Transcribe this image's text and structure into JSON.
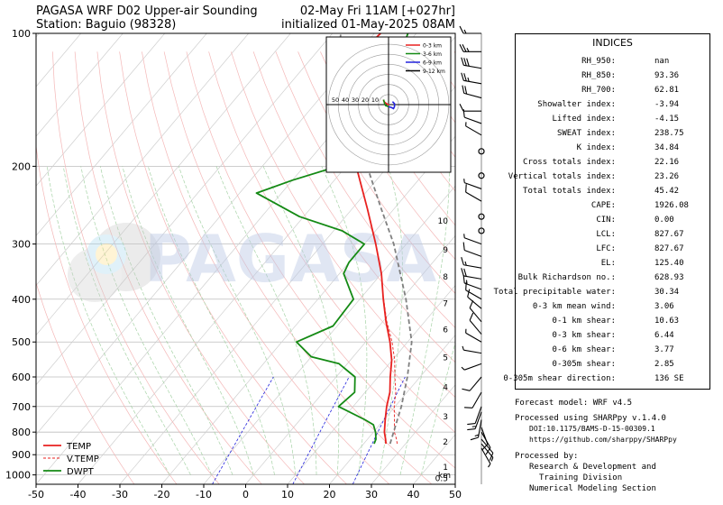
{
  "header": {
    "title_left_line1": "PAGASA WRF D02 Upper-air Sounding",
    "title_left_line2": "Station: Baguio (98328)",
    "title_right_line1": "02-May Fri 11AM [+027hr]",
    "title_right_line2": "initialized 01-May-2025 08AM"
  },
  "watermark": "PAGASA",
  "chart_data": {
    "type": "skew-t",
    "x_ticks": [
      -50,
      -40,
      -30,
      -20,
      -10,
      0,
      10,
      20,
      30,
      40,
      50
    ],
    "y_ticks": [
      100,
      200,
      300,
      400,
      500,
      600,
      700,
      800,
      900,
      1000
    ],
    "xlim": [
      -50,
      50
    ],
    "ylim": [
      1050,
      100
    ],
    "y_scale": "log",
    "height_labels": [
      "10",
      "9",
      "8",
      "7",
      "6",
      "5",
      "4",
      "3",
      "2",
      "1",
      "0.5"
    ],
    "height_labels_km": [
      10,
      9,
      8,
      7,
      6,
      5,
      4,
      3,
      2,
      1,
      0.5
    ],
    "height_unit": "km",
    "legend": [
      "TEMP",
      "V.TEMP",
      "DWPT"
    ],
    "legend_position": "lower-left",
    "colors": {
      "temp": "#e8211f",
      "vtemp": "#e8211f",
      "dwpt": "#148a14",
      "parcel": "#808080",
      "dry_adiabat": "#f4b7b7",
      "moist_adiabat": "#a7d3a7",
      "mixing_ratio": "#2222dd"
    },
    "series": [
      {
        "name": "TEMP",
        "points": [
          [
            850,
            25.3
          ],
          [
            830,
            24.3
          ],
          [
            800,
            22.6
          ],
          [
            750,
            20.3
          ],
          [
            700,
            18.0
          ],
          [
            650,
            15.9
          ],
          [
            600,
            12.9
          ],
          [
            550,
            9.9
          ],
          [
            500,
            5.8
          ],
          [
            450,
            0.8
          ],
          [
            400,
            -4.4
          ],
          [
            350,
            -10.0
          ],
          [
            300,
            -17.3
          ],
          [
            250,
            -26.3
          ],
          [
            200,
            -37.6
          ],
          [
            175,
            -44.5
          ],
          [
            150,
            -51.8
          ],
          [
            130,
            -57.5
          ],
          [
            115,
            -60.0
          ],
          [
            100,
            -58.5
          ]
        ]
      },
      {
        "name": "V.TEMP",
        "points": [
          [
            850,
            28.0
          ],
          [
            830,
            26.9
          ],
          [
            800,
            25.0
          ],
          [
            750,
            22.5
          ],
          [
            700,
            19.8
          ],
          [
            650,
            17.3
          ],
          [
            600,
            14.0
          ],
          [
            550,
            10.6
          ],
          [
            500,
            6.3
          ],
          [
            450,
            1.0
          ],
          [
            400,
            -4.3
          ]
        ]
      },
      {
        "name": "DWPT",
        "points": [
          [
            850,
            22.5
          ],
          [
            830,
            22.0
          ],
          [
            800,
            20.5
          ],
          [
            770,
            18.5
          ],
          [
            750,
            15.5
          ],
          [
            700,
            6.5
          ],
          [
            650,
            7.5
          ],
          [
            600,
            4.5
          ],
          [
            560,
            -2.0
          ],
          [
            540,
            -10.0
          ],
          [
            500,
            -16.5
          ],
          [
            460,
            -11.0
          ],
          [
            400,
            -11.5
          ],
          [
            350,
            -19.0
          ],
          [
            330,
            -20.0
          ],
          [
            300,
            -20.0
          ],
          [
            280,
            -28.0
          ],
          [
            260,
            -41.0
          ],
          [
            230,
            -56.0
          ],
          [
            215,
            -50.0
          ],
          [
            200,
            -42.0
          ],
          [
            185,
            -40.0
          ],
          [
            165,
            -43.5
          ],
          [
            150,
            -42.0
          ],
          [
            130,
            -43.5
          ],
          [
            115,
            -49.0
          ],
          [
            100,
            -52.0
          ]
        ]
      },
      {
        "name": "parcel",
        "points": [
          [
            850,
            26.3
          ],
          [
            700,
            21.5
          ],
          [
            600,
            17.0
          ],
          [
            500,
            11.0
          ],
          [
            400,
            1.0
          ],
          [
            300,
            -13.0
          ],
          [
            250,
            -23.0
          ],
          [
            200,
            -35.0
          ],
          [
            150,
            -51.0
          ],
          [
            120,
            -62.0
          ],
          [
            100,
            -68.0
          ]
        ]
      }
    ],
    "wind_barbs": [
      [
        100,
        270,
        15
      ],
      [
        110,
        270,
        25
      ],
      [
        120,
        280,
        30
      ],
      [
        130,
        280,
        25
      ],
      [
        140,
        285,
        20
      ],
      [
        150,
        270,
        10
      ],
      [
        160,
        290,
        10
      ],
      [
        170,
        300,
        5
      ],
      [
        185,
        0,
        0
      ],
      [
        210,
        0,
        0
      ],
      [
        225,
        290,
        5
      ],
      [
        240,
        300,
        10
      ],
      [
        260,
        0,
        0
      ],
      [
        280,
        0,
        0
      ],
      [
        300,
        290,
        5
      ],
      [
        320,
        290,
        10
      ],
      [
        340,
        280,
        15
      ],
      [
        360,
        280,
        20
      ],
      [
        380,
        290,
        15
      ],
      [
        400,
        300,
        10
      ],
      [
        420,
        310,
        10
      ],
      [
        450,
        320,
        10
      ],
      [
        480,
        320,
        10
      ],
      [
        500,
        300,
        5
      ],
      [
        530,
        280,
        5
      ],
      [
        560,
        250,
        5
      ],
      [
        600,
        220,
        10
      ],
      [
        650,
        210,
        10
      ],
      [
        700,
        200,
        10
      ],
      [
        720,
        200,
        15
      ],
      [
        750,
        190,
        15
      ],
      [
        780,
        160,
        10
      ],
      [
        800,
        150,
        10
      ],
      [
        830,
        140,
        10
      ],
      [
        850,
        140,
        5
      ],
      [
        870,
        150,
        5
      ]
    ],
    "hodograph": {
      "range_labels": [
        "50",
        "40",
        "30",
        "20",
        "10"
      ],
      "range_values": [
        50,
        40,
        30,
        20,
        10
      ],
      "legend": [
        "0-3 km",
        "3-6 km",
        "6-9 km",
        "9-12 km"
      ],
      "colors": [
        "#e8211f",
        "#148a14",
        "#2222dd",
        "#000000"
      ],
      "segments": [
        [
          [
            0.5,
            -0.5
          ],
          [
            -2,
            1
          ],
          [
            -4,
            2.5
          ],
          [
            -5,
            4
          ],
          [
            -5,
            5
          ]
        ],
        [
          [
            -5,
            5
          ],
          [
            -4,
            1
          ],
          [
            -3,
            -1
          ],
          [
            0,
            -2
          ]
        ],
        [
          [
            0,
            -2
          ],
          [
            3,
            -3
          ],
          [
            5,
            -4
          ],
          [
            6,
            -2
          ],
          [
            6,
            1
          ],
          [
            4,
            3
          ]
        ],
        []
      ]
    }
  },
  "indices": {
    "title": "INDICES",
    "rows": [
      {
        "label": "RH_950:",
        "value": "nan"
      },
      {
        "label": "RH_850:",
        "value": "93.36"
      },
      {
        "label": "RH_700:",
        "value": "62.81"
      },
      {
        "label": "Showalter index:",
        "value": "-3.94"
      },
      {
        "label": "Lifted index:",
        "value": "-4.15"
      },
      {
        "label": "SWEAT index:",
        "value": "238.75"
      },
      {
        "label": "K index:",
        "value": "34.84"
      },
      {
        "label": "Cross totals index:",
        "value": "22.16"
      },
      {
        "label": "Vertical totals index:",
        "value": "23.26"
      },
      {
        "label": "Total totals index:",
        "value": "45.42"
      },
      {
        "label": "CAPE:",
        "value": "1926.08"
      },
      {
        "label": "CIN:",
        "value": "0.00"
      },
      {
        "label": "LCL:",
        "value": "827.67"
      },
      {
        "label": "LFC:",
        "value": "827.67"
      },
      {
        "label": "EL:",
        "value": "125.40"
      },
      {
        "label": "Bulk Richardson no.:",
        "value": "628.93"
      },
      {
        "label": "Total precipitable water:",
        "value": "30.34"
      },
      {
        "label": "0-3 km mean wind:",
        "value": "3.06"
      },
      {
        "label": "0-1 km shear:",
        "value": "10.63"
      },
      {
        "label": "0-3 km shear:",
        "value": "6.44"
      },
      {
        "label": "0-6 km shear:",
        "value": "3.77"
      },
      {
        "label": "0-305m shear:",
        "value": "2.85"
      },
      {
        "label": "0-305m shear direction:",
        "value": "136 SE"
      }
    ]
  },
  "footer": {
    "model": "Forecast model: WRF v4.5",
    "processed_using": "Processed using SHARPpy v.1.4.0",
    "doi": "DOI:10.1175/BAMS-D-15-00309.1",
    "url": "https://github.com/sharppy/SHARPpy",
    "processed_by": "Processed by:",
    "division_line1": "Research & Development and",
    "division_line2": "Training Division",
    "section": "Numerical Modeling Section"
  }
}
